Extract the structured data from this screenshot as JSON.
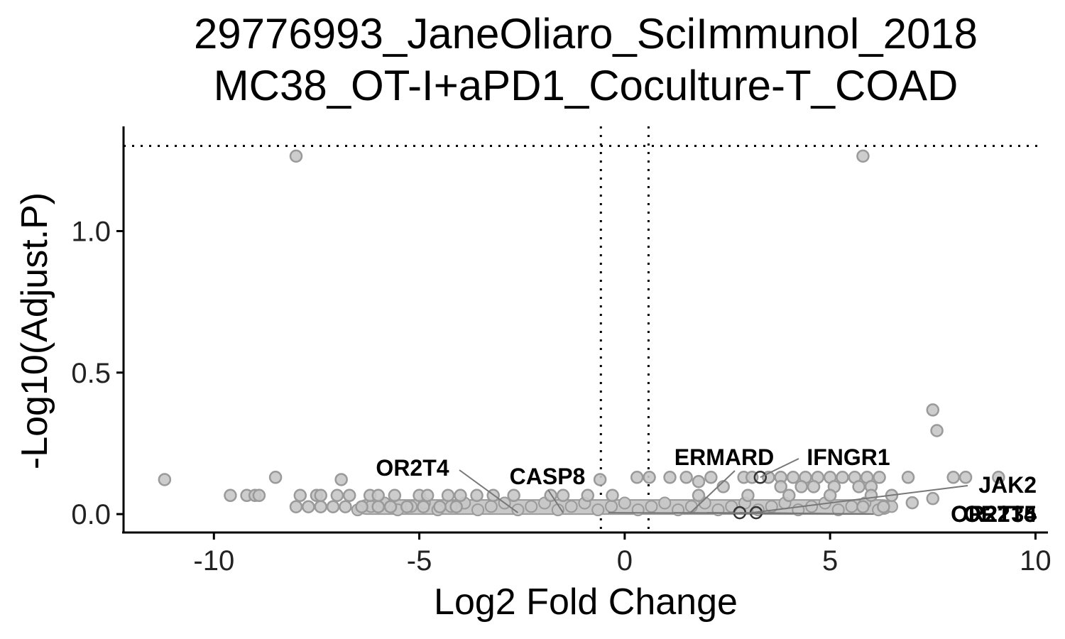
{
  "chart_data": {
    "type": "scatter",
    "title": "29776993_JaneOliaro_SciImmunol_2018",
    "subtitle": "MC38_OT-I+aPD1_Coculture-T_COAD",
    "xlabel": "Log2 Fold Change",
    "ylabel": "-Log10(Adjust.P)",
    "xlim": [
      -12.2,
      10.2
    ],
    "ylim": [
      -0.065,
      1.37
    ],
    "x_ticks": [
      -10,
      -5,
      0,
      5,
      10
    ],
    "x_tick_labels": [
      "-10",
      "-5",
      "0",
      "5",
      "10"
    ],
    "y_ticks": [
      0.0,
      0.5,
      1.0
    ],
    "y_tick_labels": [
      "0.0",
      "0.5",
      "1.0"
    ],
    "thresholds": {
      "log2fc": [
        -0.58,
        0.58
      ],
      "neg_log10_p": 1.301
    },
    "grid": false,
    "legend": "none",
    "colors": {
      "point_fill": "#c8c8c8",
      "point_stroke": "#9a9a9a",
      "highlight_stroke": "#333333",
      "line": "#777777"
    },
    "points": [
      {
        "x": -8.0,
        "y": 1.265
      },
      {
        "x": 5.8,
        "y": 1.265
      },
      {
        "x": 7.5,
        "y": 0.368
      },
      {
        "x": 7.6,
        "y": 0.295
      },
      {
        "x": -11.2,
        "y": 0.122
      },
      {
        "x": -8.5,
        "y": 0.13
      },
      {
        "x": -6.9,
        "y": 0.122
      },
      {
        "x": -9.6,
        "y": 0.066
      },
      {
        "x": -9.2,
        "y": 0.066
      },
      {
        "x": -9.0,
        "y": 0.066
      },
      {
        "x": -8.9,
        "y": 0.066
      },
      {
        "x": -7.9,
        "y": 0.066
      },
      {
        "x": -7.5,
        "y": 0.066
      },
      {
        "x": -7.4,
        "y": 0.066
      },
      {
        "x": -7.0,
        "y": 0.066
      },
      {
        "x": -6.7,
        "y": 0.066
      },
      {
        "x": -6.2,
        "y": 0.066
      },
      {
        "x": -6.0,
        "y": 0.066
      },
      {
        "x": -5.6,
        "y": 0.066
      },
      {
        "x": -5.0,
        "y": 0.066
      },
      {
        "x": -4.8,
        "y": 0.066
      },
      {
        "x": -4.3,
        "y": 0.066
      },
      {
        "x": -4.0,
        "y": 0.066
      },
      {
        "x": -3.6,
        "y": 0.066
      },
      {
        "x": -3.2,
        "y": 0.066
      },
      {
        "x": -2.7,
        "y": 0.066
      },
      {
        "x": -1.8,
        "y": 0.066
      },
      {
        "x": -1.5,
        "y": 0.066
      },
      {
        "x": -0.9,
        "y": 0.066
      },
      {
        "x": -0.3,
        "y": 0.066
      },
      {
        "x": -8.0,
        "y": 0.026
      },
      {
        "x": -7.7,
        "y": 0.026
      },
      {
        "x": -7.4,
        "y": 0.026
      },
      {
        "x": -7.1,
        "y": 0.026
      },
      {
        "x": -6.8,
        "y": 0.026
      },
      {
        "x": -6.4,
        "y": 0.026
      },
      {
        "x": -6.0,
        "y": 0.026
      },
      {
        "x": -5.7,
        "y": 0.026
      },
      {
        "x": -5.3,
        "y": 0.026
      },
      {
        "x": -4.9,
        "y": 0.026
      },
      {
        "x": -4.5,
        "y": 0.026
      },
      {
        "x": -4.1,
        "y": 0.026
      },
      {
        "x": -0.6,
        "y": 0.122
      },
      {
        "x": 0.3,
        "y": 0.13
      },
      {
        "x": 0.6,
        "y": 0.13
      },
      {
        "x": 1.1,
        "y": 0.13
      },
      {
        "x": 1.5,
        "y": 0.13
      },
      {
        "x": 2.1,
        "y": 0.13
      },
      {
        "x": 2.9,
        "y": 0.13
      },
      {
        "x": 3.1,
        "y": 0.13
      },
      {
        "x": 3.5,
        "y": 0.13
      },
      {
        "x": 3.8,
        "y": 0.13
      },
      {
        "x": 4.1,
        "y": 0.13
      },
      {
        "x": 4.4,
        "y": 0.13
      },
      {
        "x": 4.7,
        "y": 0.13
      },
      {
        "x": 5.0,
        "y": 0.13
      },
      {
        "x": 5.3,
        "y": 0.13
      },
      {
        "x": 5.6,
        "y": 0.13
      },
      {
        "x": 5.9,
        "y": 0.13
      },
      {
        "x": 6.2,
        "y": 0.13
      },
      {
        "x": 6.9,
        "y": 0.13
      },
      {
        "x": 8.0,
        "y": 0.13
      },
      {
        "x": 8.3,
        "y": 0.13
      },
      {
        "x": 9.1,
        "y": 0.13
      },
      {
        "x": 1.8,
        "y": 0.115
      },
      {
        "x": 2.4,
        "y": 0.097
      },
      {
        "x": 3.8,
        "y": 0.097
      },
      {
        "x": 4.3,
        "y": 0.097
      },
      {
        "x": 4.6,
        "y": 0.097
      },
      {
        "x": 5.1,
        "y": 0.097
      },
      {
        "x": 5.7,
        "y": 0.097
      },
      {
        "x": 6.0,
        "y": 0.097
      },
      {
        "x": 1.8,
        "y": 0.066
      },
      {
        "x": 3.0,
        "y": 0.066
      },
      {
        "x": 4.0,
        "y": 0.066
      },
      {
        "x": 5.0,
        "y": 0.066
      },
      {
        "x": 6.0,
        "y": 0.066
      },
      {
        "x": 6.5,
        "y": 0.066
      },
      {
        "x": 7.5,
        "y": 0.055
      },
      {
        "x": 7.0,
        "y": 0.04
      },
      {
        "x": 5.8,
        "y": 0.026
      },
      {
        "x": 6.3,
        "y": 0.026
      }
    ],
    "highlight_points": [
      {
        "x": 3.3,
        "y": 0.13
      },
      {
        "x": 2.8,
        "y": 0.005
      },
      {
        "x": 3.2,
        "y": 0.005
      }
    ],
    "band": {
      "x": [
        -6.5,
        6.5
      ],
      "y": [
        0.0,
        0.05
      ]
    },
    "labels": [
      {
        "text": "OR2T4",
        "x": -2.6,
        "y": 0.005
      },
      {
        "text": "CASP8",
        "x": -1.5,
        "y": 0.005
      },
      {
        "text": "ERMARD",
        "x": 1.6,
        "y": 0.005
      },
      {
        "text": "IFNGR1",
        "x": 3.3,
        "y": 0.13
      },
      {
        "text": "JAK2",
        "x": 3.1,
        "y": 0.005
      },
      {
        "text": "OR2T35",
        "x": -0.4,
        "y": 0.005
      },
      {
        "text": "OR2T5",
        "x": 2.8,
        "y": 0.005
      },
      {
        "text": "OR2T4",
        "x": 1.2,
        "y": 0.005
      },
      {
        "text": "OR2T34",
        "x": 2.0,
        "y": 0.005
      }
    ]
  }
}
